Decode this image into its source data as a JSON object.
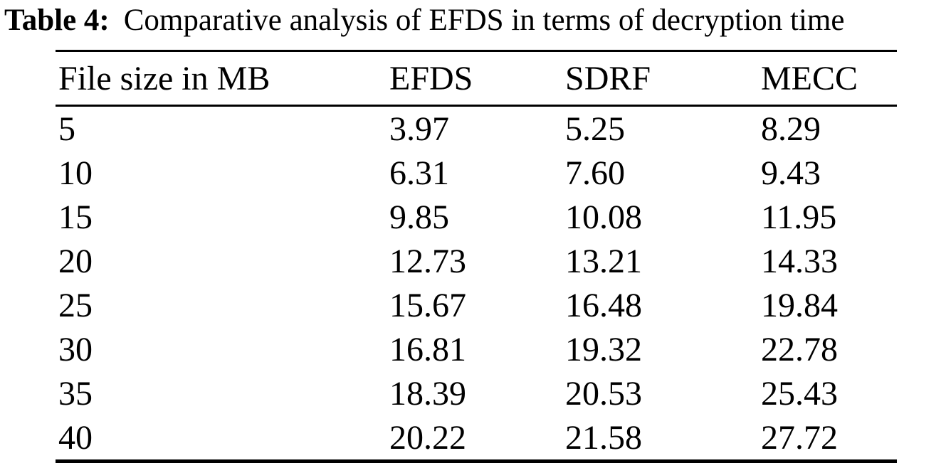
{
  "page": {
    "background_color": "#ffffff",
    "text_color": "#000000"
  },
  "caption": {
    "label": "Table 4:",
    "text": "Comparative analysis of EFDS in terms of decryption time"
  },
  "table": {
    "columns": [
      "File size in MB",
      "EFDS",
      "SDRF",
      "MECC"
    ],
    "rows": [
      [
        "5",
        "3.97",
        "5.25",
        "8.29"
      ],
      [
        "10",
        "6.31",
        "7.60",
        "9.43"
      ],
      [
        "15",
        "9.85",
        "10.08",
        "11.95"
      ],
      [
        "20",
        "12.73",
        "13.21",
        "14.33"
      ],
      [
        "25",
        "15.67",
        "16.48",
        "19.84"
      ],
      [
        "30",
        "16.81",
        "19.32",
        "22.78"
      ],
      [
        "35",
        "18.39",
        "20.53",
        "25.43"
      ],
      [
        "40",
        "20.22",
        "21.58",
        "27.72"
      ]
    ]
  },
  "chart_data": {
    "type": "table",
    "title": "Table 4: Comparative analysis of EFDS in terms of decryption time",
    "xlabel": "File size in MB",
    "categories": [
      5,
      10,
      15,
      20,
      25,
      30,
      35,
      40
    ],
    "series": [
      {
        "name": "EFDS",
        "values": [
          3.97,
          6.31,
          9.85,
          12.73,
          15.67,
          16.81,
          18.39,
          20.22
        ]
      },
      {
        "name": "SDRF",
        "values": [
          5.25,
          7.6,
          10.08,
          13.21,
          16.48,
          19.32,
          20.53,
          21.58
        ]
      },
      {
        "name": "MECC",
        "values": [
          8.29,
          9.43,
          11.95,
          14.33,
          19.84,
          22.78,
          25.43,
          27.72
        ]
      }
    ]
  }
}
